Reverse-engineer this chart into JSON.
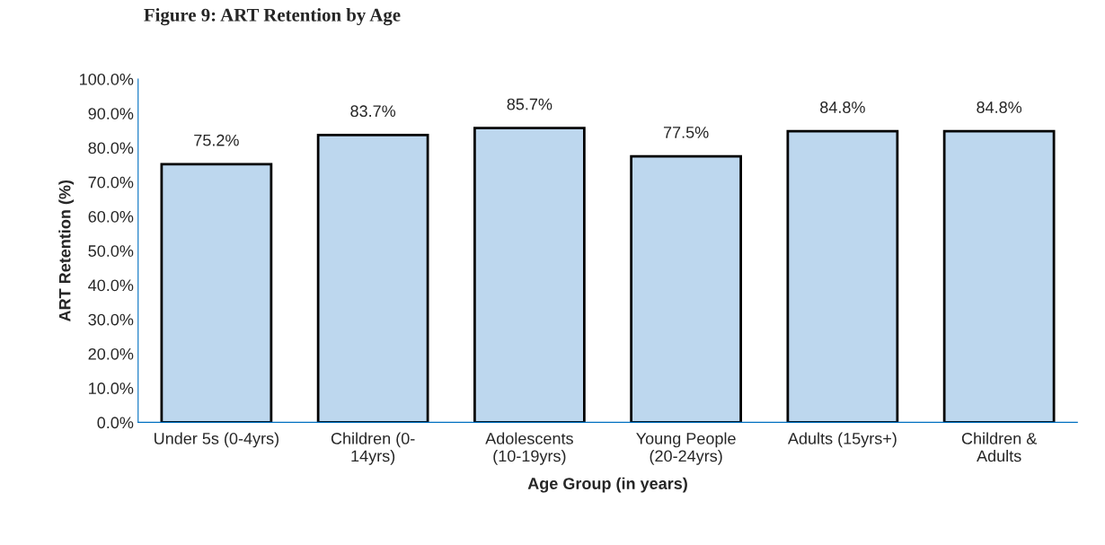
{
  "chart_data": {
    "type": "bar",
    "title": "Figure 9: ART Retention by Age",
    "xlabel": "Age Group (in years)",
    "ylabel": "ART Retention (%)",
    "categories": [
      "Under 5s (0-4yrs)",
      "Children (0-\n14yrs)",
      "Adolescents\n(10-19yrs)",
      "Young People\n(20-24yrs)",
      "Adults (15yrs+)",
      "Children &\nAdults"
    ],
    "values": [
      75.2,
      83.7,
      85.7,
      77.5,
      84.8,
      84.8
    ],
    "color": "#bdd7ee",
    "value_labels": [
      "75.2%",
      "83.7%",
      "85.7%",
      "77.5%",
      "84.8%",
      "84.8%"
    ],
    "ylim": [
      0,
      100
    ],
    "yticks": [
      {
        "value": 0,
        "label": "0.0%"
      },
      {
        "value": 10,
        "label": "10.0%"
      },
      {
        "value": 20,
        "label": "20.0%"
      },
      {
        "value": 30,
        "label": "30.0%"
      },
      {
        "value": 40,
        "label": "40.0%"
      },
      {
        "value": 50,
        "label": "50.0%"
      },
      {
        "value": 60,
        "label": "60.0%"
      },
      {
        "value": 70,
        "label": "70.0%"
      },
      {
        "value": 80,
        "label": "80.0%"
      },
      {
        "value": 90,
        "label": "90.0%"
      },
      {
        "value": 100,
        "label": "100.0%"
      }
    ],
    "grid": false,
    "legend": false
  }
}
